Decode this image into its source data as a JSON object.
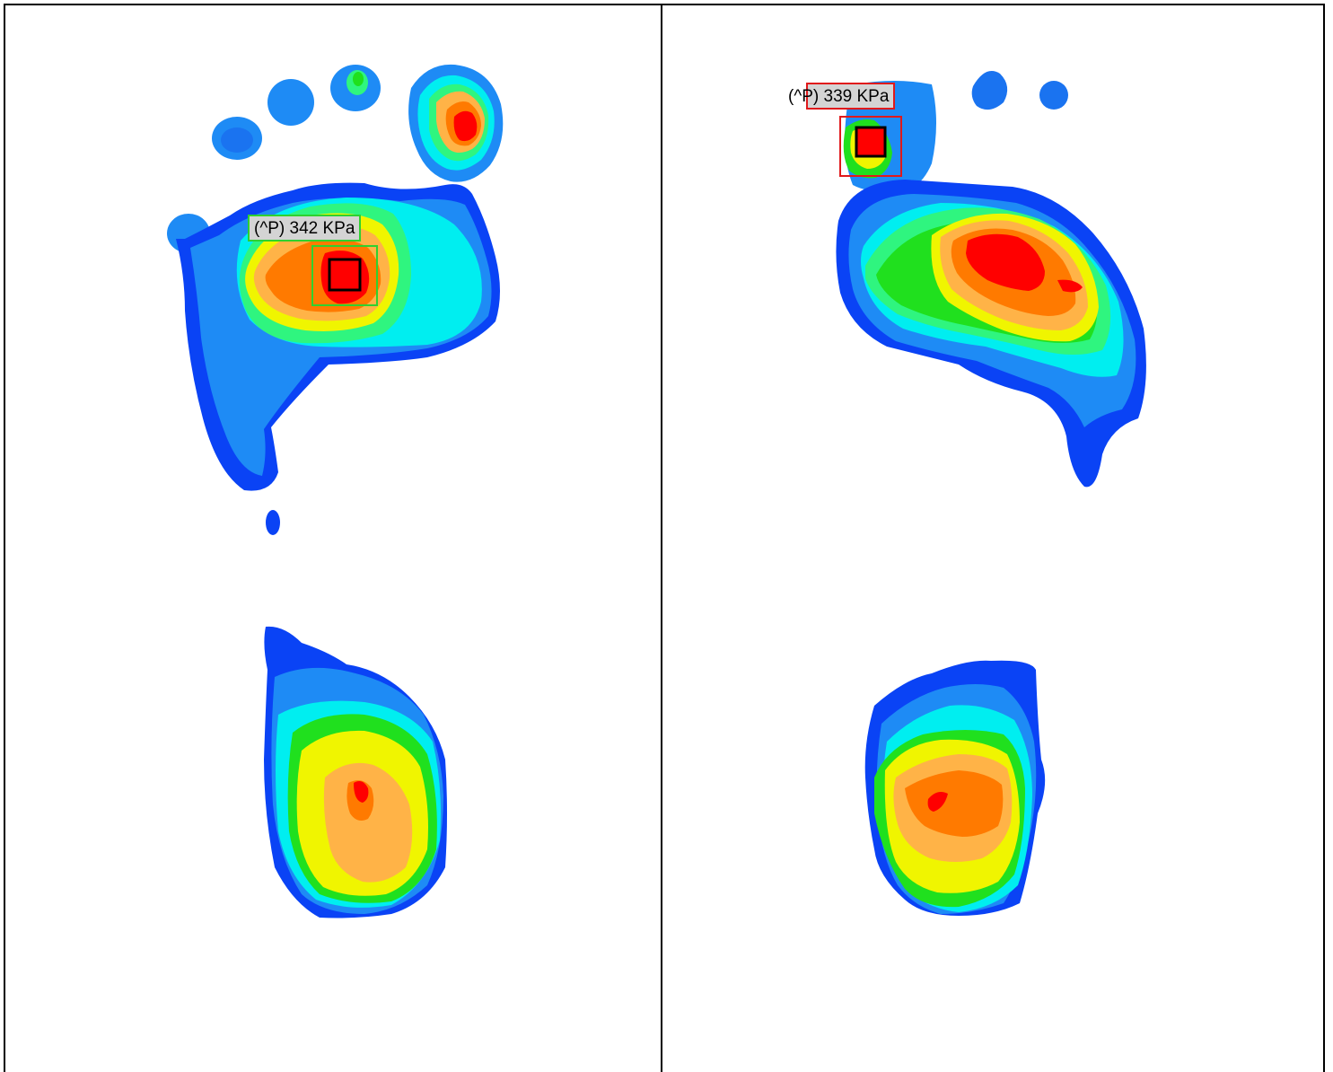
{
  "chart_data": [
    {
      "type": "heatmap",
      "panel": "left",
      "peak_label": "(^P) 342 KPa",
      "peak_value": 342,
      "unit": "KPa",
      "marker_color": "#2fd12f"
    },
    {
      "type": "heatmap",
      "panel": "right",
      "peak_label": "(^P) 339 KPa",
      "peak_value": 339,
      "unit": "KPa",
      "marker_color": "#e0191b"
    }
  ],
  "colors": {
    "level1": "#0a43f5",
    "level2": "#1e8bf5",
    "level3": "#00eef0",
    "level4": "#2ff57f",
    "level5": "#20e01e",
    "level6": "#f0f500",
    "level7": "#ffb347",
    "level8": "#ff7a00",
    "level9": "#ff0000"
  }
}
